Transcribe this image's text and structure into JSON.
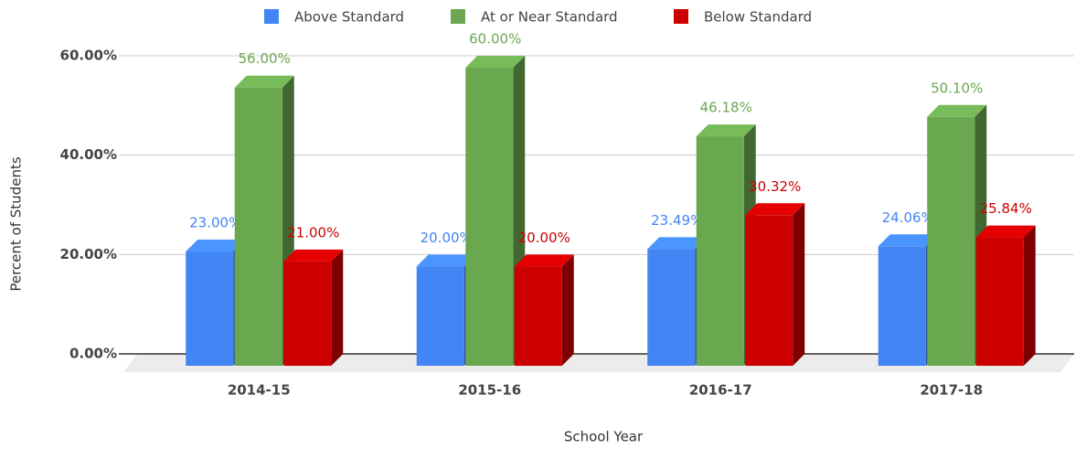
{
  "chart_data": {
    "type": "bar3d",
    "categories": [
      "2014-15",
      "2015-16",
      "2016-17",
      "2017-18"
    ],
    "series": [
      {
        "name": "Above Standard",
        "color": "#4285f4",
        "values": [
          23,
          20,
          23.49,
          24.06
        ],
        "value_labels": [
          "23.00%",
          "20.00%",
          "23.49%",
          "24.06%"
        ]
      },
      {
        "name": "At or Near Standard",
        "color": "#6aa84f",
        "values": [
          56,
          60,
          46.18,
          50.1
        ],
        "value_labels": [
          "56.00%",
          "60.00%",
          "46.18%",
          "50.10%"
        ]
      },
      {
        "name": "Below Standard",
        "color": "#cc0000",
        "values": [
          21,
          20,
          30.32,
          25.84
        ],
        "value_labels": [
          "21.00%",
          "20.00%",
          "30.32%",
          "25.84%"
        ]
      }
    ],
    "x_label": "School Year",
    "y_label": "Percent of Students",
    "ylim": [
      0,
      60
    ],
    "yticks": [
      {
        "value": 0,
        "label": "0.00%"
      },
      {
        "value": 20,
        "label": "20.00%"
      },
      {
        "value": 40,
        "label": "40.00%"
      },
      {
        "value": 60,
        "label": "60.00%"
      }
    ],
    "grid": true,
    "legend": "top"
  }
}
